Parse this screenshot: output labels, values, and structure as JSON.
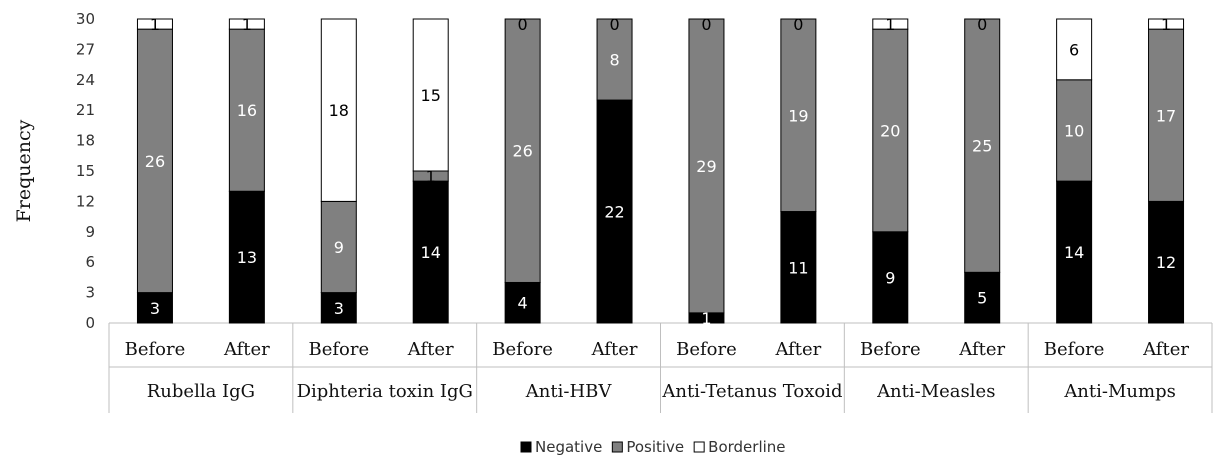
{
  "chart_data": {
    "type": "bar",
    "stacked": true,
    "ylabel": "Frequency",
    "ylim": [
      0,
      30
    ],
    "yticks": [
      0,
      3,
      6,
      9,
      12,
      15,
      18,
      21,
      24,
      27,
      30
    ],
    "groups": [
      "Rubella IgG",
      "Diphteria toxin IgG",
      "Anti-HBV",
      "Anti-Tetanus Toxoid",
      "Anti-Measles",
      "Anti-Mumps"
    ],
    "subcategories": [
      "Before",
      "After"
    ],
    "series": [
      {
        "name": "Negative",
        "color": "#000000",
        "values": [
          3,
          13,
          3,
          14,
          4,
          22,
          1,
          11,
          9,
          5,
          14,
          12
        ]
      },
      {
        "name": "Positive",
        "color": "#808080",
        "values": [
          26,
          16,
          9,
          1,
          26,
          8,
          29,
          19,
          20,
          25,
          10,
          17
        ]
      },
      {
        "name": "Borderline",
        "color": "#ffffff",
        "values": [
          1,
          1,
          18,
          15,
          0,
          0,
          0,
          0,
          1,
          0,
          6,
          1
        ]
      }
    ],
    "legend_position": "bottom",
    "grid": false
  }
}
